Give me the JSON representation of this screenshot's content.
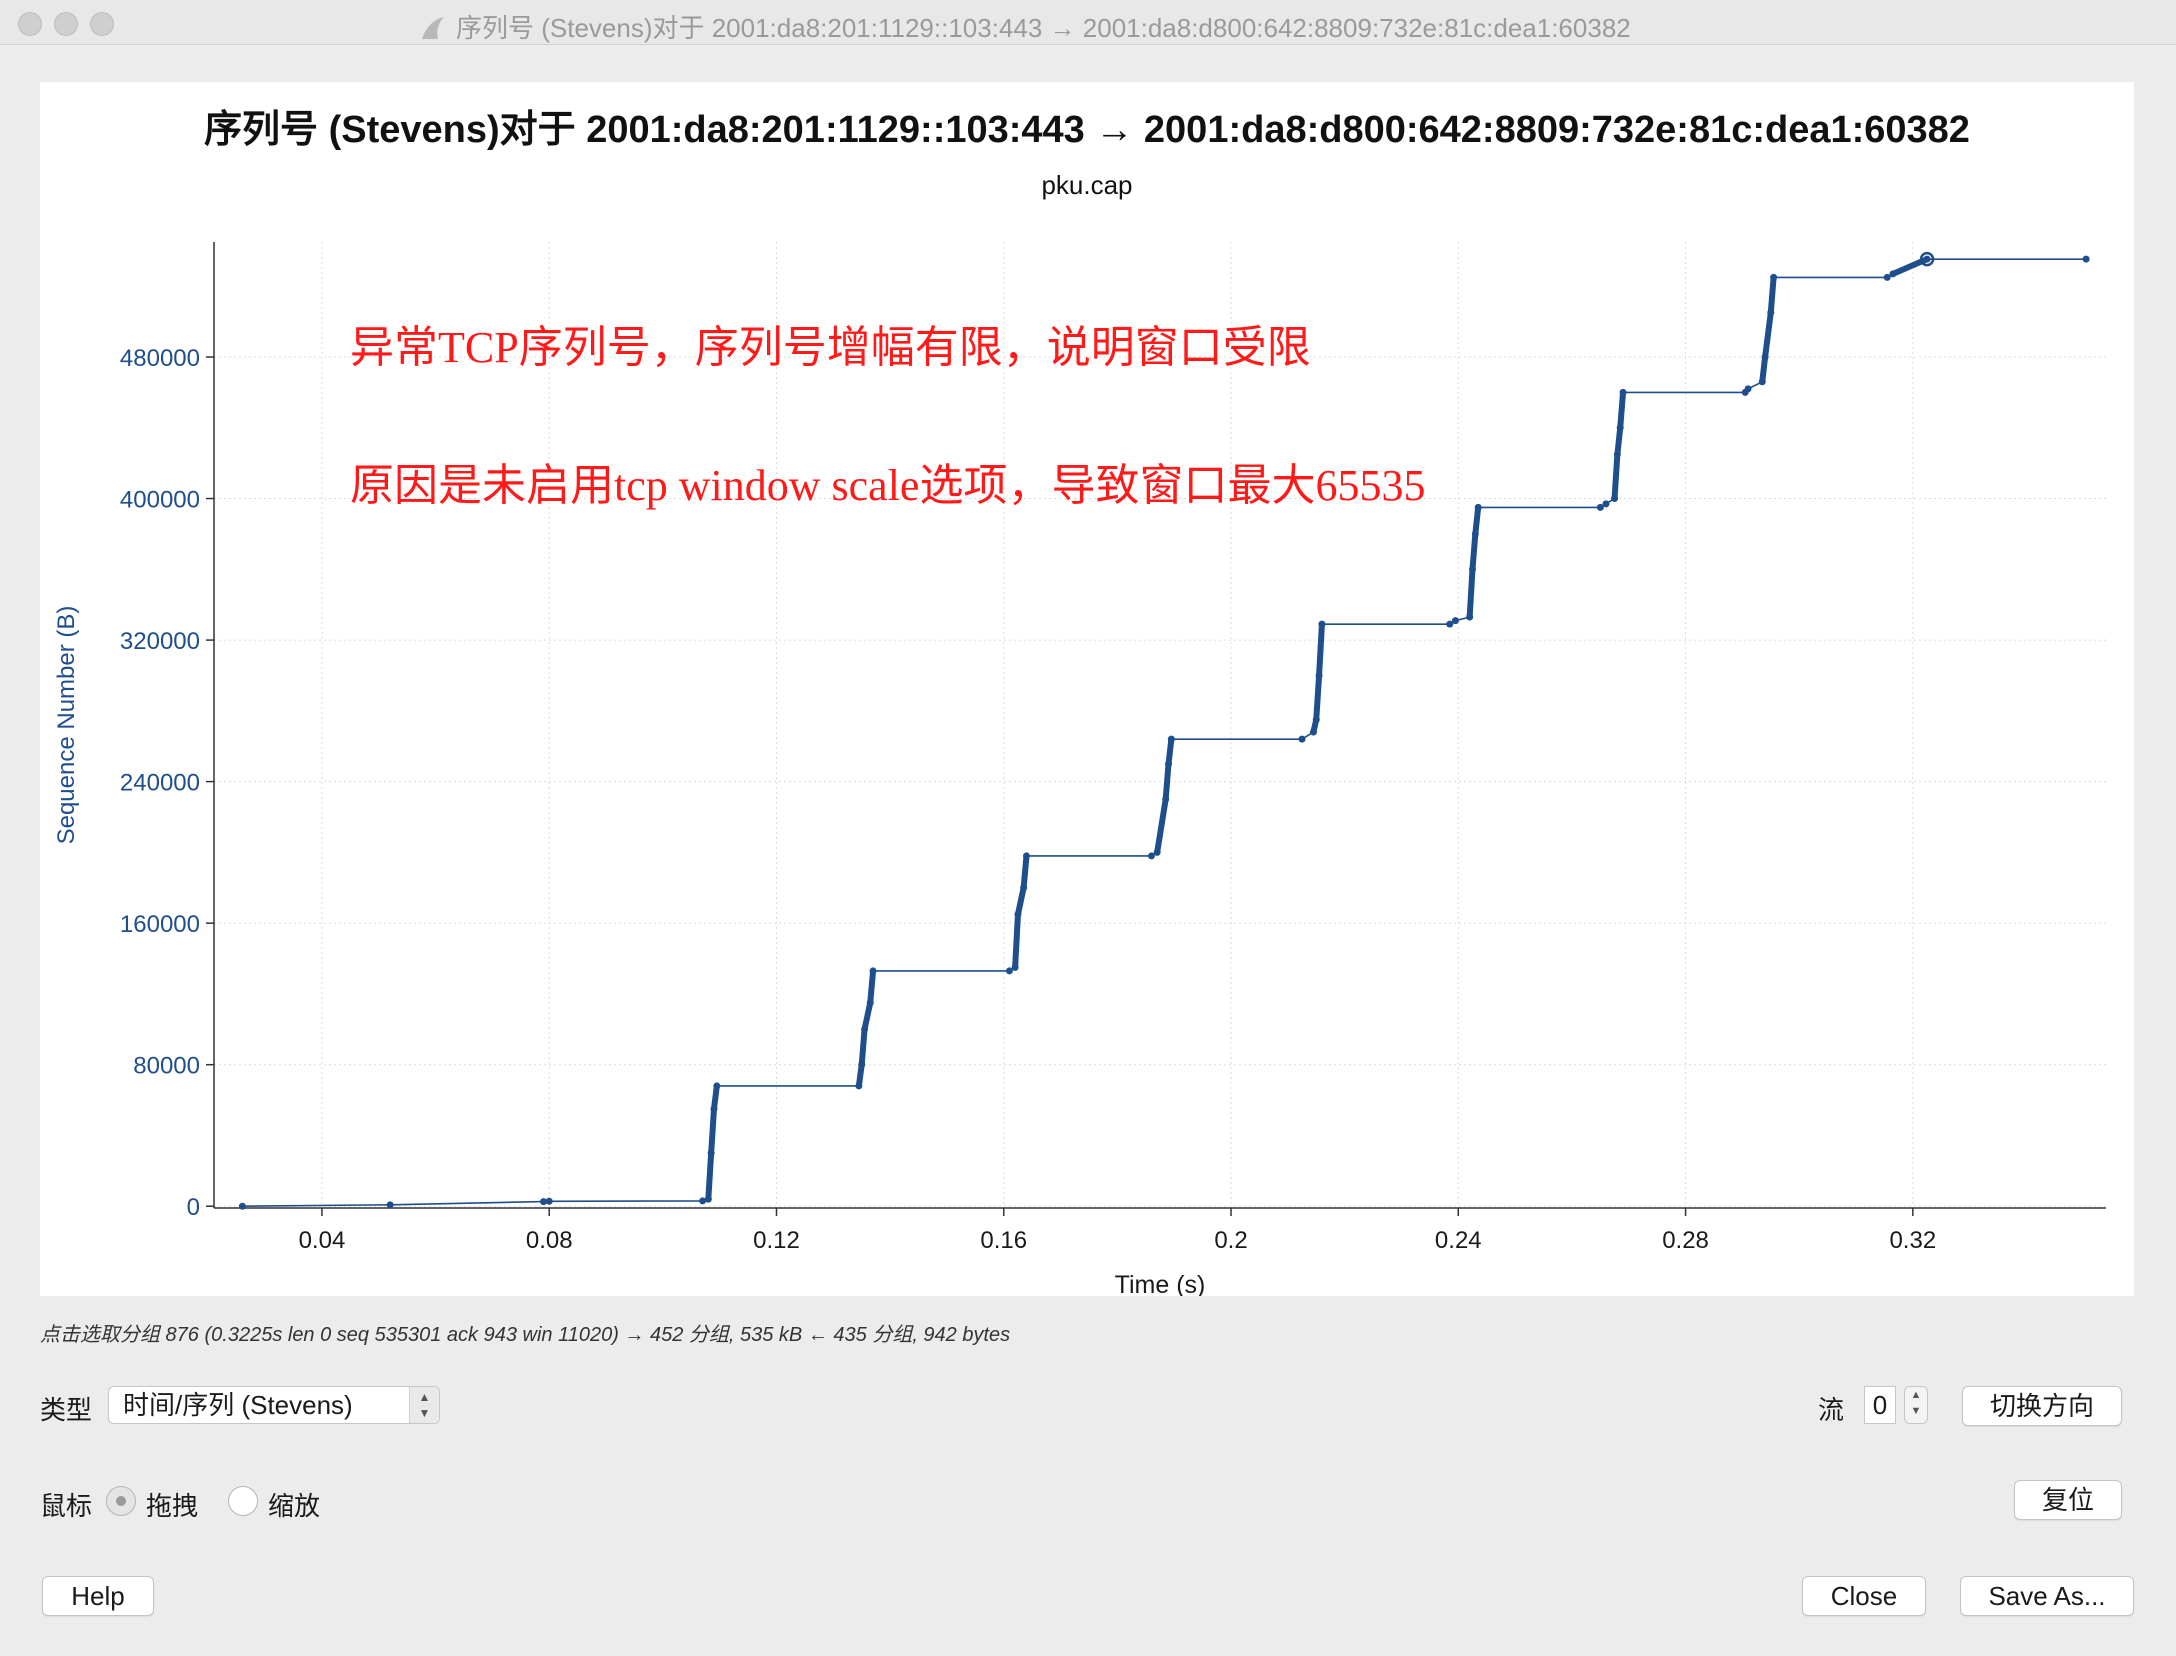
{
  "window": {
    "title": "序列号 (Stevens)对于 2001:da8:201:1129::103:443 → 2001:da8:d800:642:8809:732e:81c:dea1:60382"
  },
  "chart_data": {
    "type": "line",
    "title": "序列号 (Stevens)对于 2001:da8:201:1129::103:443 → 2001:da8:d800:642:8809:732e:81c:dea1:60382",
    "subtitle": "pku.cap",
    "xlabel": "Time (s)",
    "ylabel": "Sequence Number (B)",
    "xlim": [
      0.021,
      0.354
    ],
    "ylim": [
      -1000,
      545000
    ],
    "x_ticks": [
      0.04,
      0.08,
      0.12,
      0.16,
      0.2,
      0.24,
      0.28,
      0.32
    ],
    "x_tick_labels": [
      "0.04",
      "0.08",
      "0.12",
      "0.16",
      "0.2",
      "0.24",
      "0.28",
      "0.32"
    ],
    "y_ticks": [
      0,
      80000,
      160000,
      240000,
      320000,
      400000,
      480000
    ],
    "y_tick_labels": [
      "0",
      "80000",
      "160000",
      "240000",
      "320000",
      "400000",
      "480000"
    ],
    "grid": true,
    "color": "#1f4e8c",
    "series": [
      {
        "points": [
          [
            0.026,
            0
          ],
          [
            0.052,
            800
          ],
          [
            0.079,
            2600
          ],
          [
            0.08,
            2800
          ],
          [
            0.107,
            3000
          ],
          [
            0.108,
            4000
          ],
          [
            0.1085,
            30000
          ],
          [
            0.109,
            55000
          ],
          [
            0.1095,
            68000
          ],
          [
            0.1345,
            68000
          ],
          [
            0.135,
            80000
          ],
          [
            0.1355,
            100000
          ],
          [
            0.1365,
            115000
          ],
          [
            0.137,
            133000
          ],
          [
            0.161,
            133000
          ],
          [
            0.162,
            135000
          ],
          [
            0.1625,
            165000
          ],
          [
            0.1635,
            180000
          ],
          [
            0.164,
            198000
          ],
          [
            0.186,
            198000
          ],
          [
            0.187,
            200000
          ],
          [
            0.1885,
            230000
          ],
          [
            0.189,
            250000
          ],
          [
            0.1895,
            264000
          ],
          [
            0.2125,
            264000
          ],
          [
            0.2145,
            268000
          ],
          [
            0.215,
            275000
          ],
          [
            0.2155,
            300000
          ],
          [
            0.216,
            329000
          ],
          [
            0.2385,
            329000
          ],
          [
            0.2395,
            331000
          ],
          [
            0.242,
            333000
          ],
          [
            0.2425,
            360000
          ],
          [
            0.243,
            380000
          ],
          [
            0.2435,
            395000
          ],
          [
            0.265,
            395000
          ],
          [
            0.266,
            397000
          ],
          [
            0.2675,
            400000
          ],
          [
            0.268,
            425000
          ],
          [
            0.2685,
            440000
          ],
          [
            0.269,
            460000
          ],
          [
            0.2905,
            460000
          ],
          [
            0.291,
            462000
          ],
          [
            0.2935,
            466000
          ],
          [
            0.294,
            480000
          ],
          [
            0.295,
            505000
          ],
          [
            0.2955,
            525000
          ],
          [
            0.3155,
            525000
          ],
          [
            0.3165,
            527000
          ],
          [
            0.3225,
            535301
          ],
          [
            0.3505,
            535301
          ]
        ]
      }
    ],
    "selected_point": [
      0.3225,
      535301
    ]
  },
  "annotations": [
    "异常TCP序列号，序列号增幅有限，说明窗口受限",
    "原因是未启用tcp window scale选项，导致窗口最大65535"
  ],
  "status_text": "点击选取分组 876 (0.3225s len 0 seq 535301 ack 943 win 11020) → 452 分组, 535 kB ← 435 分组, 942 bytes",
  "controls": {
    "type_label": "类型",
    "type_value": "时间/序列 (Stevens)",
    "stream_label": "流",
    "stream_value": "0",
    "switch_direction": "切换方向",
    "mouse_label": "鼠标",
    "drag_label": "拖拽",
    "zoom_label": "缩放",
    "reset": "复位",
    "help": "Help",
    "close": "Close",
    "save_as": "Save As..."
  }
}
